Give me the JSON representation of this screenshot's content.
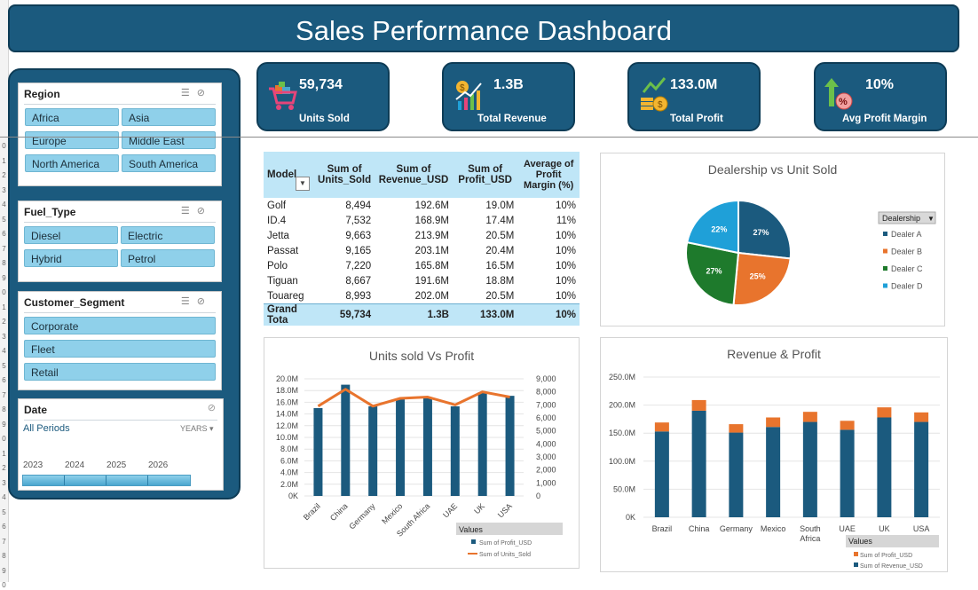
{
  "title": "Sales Performance Dashboard",
  "row_numbers": [
    "0",
    "1",
    "2",
    "3",
    "4",
    "5",
    "6",
    "7",
    "8",
    "9",
    "0",
    "1",
    "2",
    "3",
    "4",
    "5",
    "6",
    "7",
    "8",
    "9",
    "0",
    "1",
    "2",
    "3",
    "4",
    "5",
    "6",
    "7",
    "8",
    "9",
    "0"
  ],
  "slicers": {
    "region": {
      "title": "Region",
      "items": [
        "Africa",
        "Asia",
        "Europe",
        "Middle East",
        "North America",
        "South America"
      ]
    },
    "fuel": {
      "title": "Fuel_Type",
      "items": [
        "Diesel",
        "Electric",
        "Hybrid",
        "Petrol"
      ]
    },
    "segment": {
      "title": "Customer_Segment",
      "items": [
        "Corporate",
        "Fleet",
        "Retail"
      ]
    },
    "date": {
      "title": "Date",
      "period": "All Periods",
      "level": "YEARS",
      "years": [
        "2023",
        "2024",
        "2025",
        "2026"
      ]
    }
  },
  "kpis": [
    {
      "value": "59,734",
      "label": "Units Sold",
      "icon": "shopping-cart-icon"
    },
    {
      "value": "1.3B",
      "label": "Total Revenue",
      "icon": "revenue-chart-icon"
    },
    {
      "value": "133.0M",
      "label": "Total Profit",
      "icon": "coins-icon"
    },
    {
      "value": "10%",
      "label": "Avg Profit Margin",
      "icon": "percent-arrow-icon"
    }
  ],
  "pivot": {
    "headers": [
      "Model",
      "Sum of Units_Sold",
      "Sum of Revenue_USD",
      "Sum of Profit_USD",
      "Average of Profit Margin (%)"
    ],
    "rows": [
      [
        "Golf",
        "8,494",
        "192.6M",
        "19.0M",
        "10%"
      ],
      [
        "ID.4",
        "7,532",
        "168.9M",
        "17.4M",
        "11%"
      ],
      [
        "Jetta",
        "9,663",
        "213.9M",
        "20.5M",
        "10%"
      ],
      [
        "Passat",
        "9,165",
        "203.1M",
        "20.4M",
        "10%"
      ],
      [
        "Polo",
        "7,220",
        "165.8M",
        "16.5M",
        "10%"
      ],
      [
        "Tiguan",
        "8,667",
        "191.6M",
        "18.8M",
        "10%"
      ],
      [
        "Touareg",
        "8,993",
        "202.0M",
        "20.5M",
        "10%"
      ]
    ],
    "total": [
      "Grand Tota",
      "59,734",
      "1.3B",
      "133.0M",
      "10%"
    ]
  },
  "chart_data": [
    {
      "type": "pie",
      "title": "Dealership vs Unit Sold",
      "legend_title": "Dealership",
      "labels": [
        "Dealer A",
        "Dealer B",
        "Dealer C",
        "Dealer D"
      ],
      "values": [
        27,
        25,
        27,
        22
      ],
      "value_labels": [
        "27%",
        "25%",
        "27%",
        "22%"
      ],
      "colors": [
        "#1b5a7e",
        "#e8742d",
        "#1e7a2c",
        "#1fa0d8"
      ],
      "legend_placement": "right"
    },
    {
      "type": "bar",
      "title": "Units sold Vs Profit",
      "categories": [
        "Brazil",
        "China",
        "Germany",
        "Mexico",
        "South Africa",
        "UAE",
        "UK",
        "USA"
      ],
      "series": [
        {
          "name": "Sum of Profit_USD",
          "axis": "left",
          "kind": "bar",
          "color": "#1b5a7e",
          "values": [
            15.0,
            19.0,
            15.3,
            16.5,
            16.8,
            15.3,
            17.7,
            17.1
          ]
        },
        {
          "name": "Sum of Units_Sold",
          "axis": "right",
          "kind": "line",
          "color": "#e8742d",
          "values": [
            6900,
            8200,
            6900,
            7500,
            7600,
            7000,
            8000,
            7600
          ]
        }
      ],
      "y_left_ticks": [
        "0K",
        "2.0M",
        "4.0M",
        "6.0M",
        "8.0M",
        "10.0M",
        "12.0M",
        "14.0M",
        "16.0M",
        "18.0M",
        "20.0M"
      ],
      "y_left_range": [
        0,
        20
      ],
      "y_right_ticks": [
        "0",
        "1,000",
        "2,000",
        "3,000",
        "4,000",
        "5,000",
        "6,000",
        "7,000",
        "8,000",
        "9,000"
      ],
      "y_right_range": [
        0,
        9000
      ],
      "legend_title": "Values",
      "grid": true
    },
    {
      "type": "bar",
      "stacked": true,
      "title": "Revenue & Profit",
      "categories": [
        "Brazil",
        "China",
        "Germany",
        "Mexico",
        "South Africa",
        "UAE",
        "UK",
        "USA"
      ],
      "series": [
        {
          "name": "Sum of Revenue_USD",
          "color": "#1b5a7e",
          "values": [
            153,
            190,
            151,
            161,
            170,
            156,
            178,
            170
          ]
        },
        {
          "name": "Sum of Profit_USD",
          "color": "#e8742d",
          "values": [
            16,
            19,
            15,
            17,
            18,
            16,
            18,
            17
          ]
        }
      ],
      "y_ticks": [
        "0K",
        "50.0M",
        "100.0M",
        "150.0M",
        "200.0M",
        "250.0M"
      ],
      "y_range": [
        0,
        250
      ],
      "legend_title": "Values",
      "grid": true
    }
  ]
}
